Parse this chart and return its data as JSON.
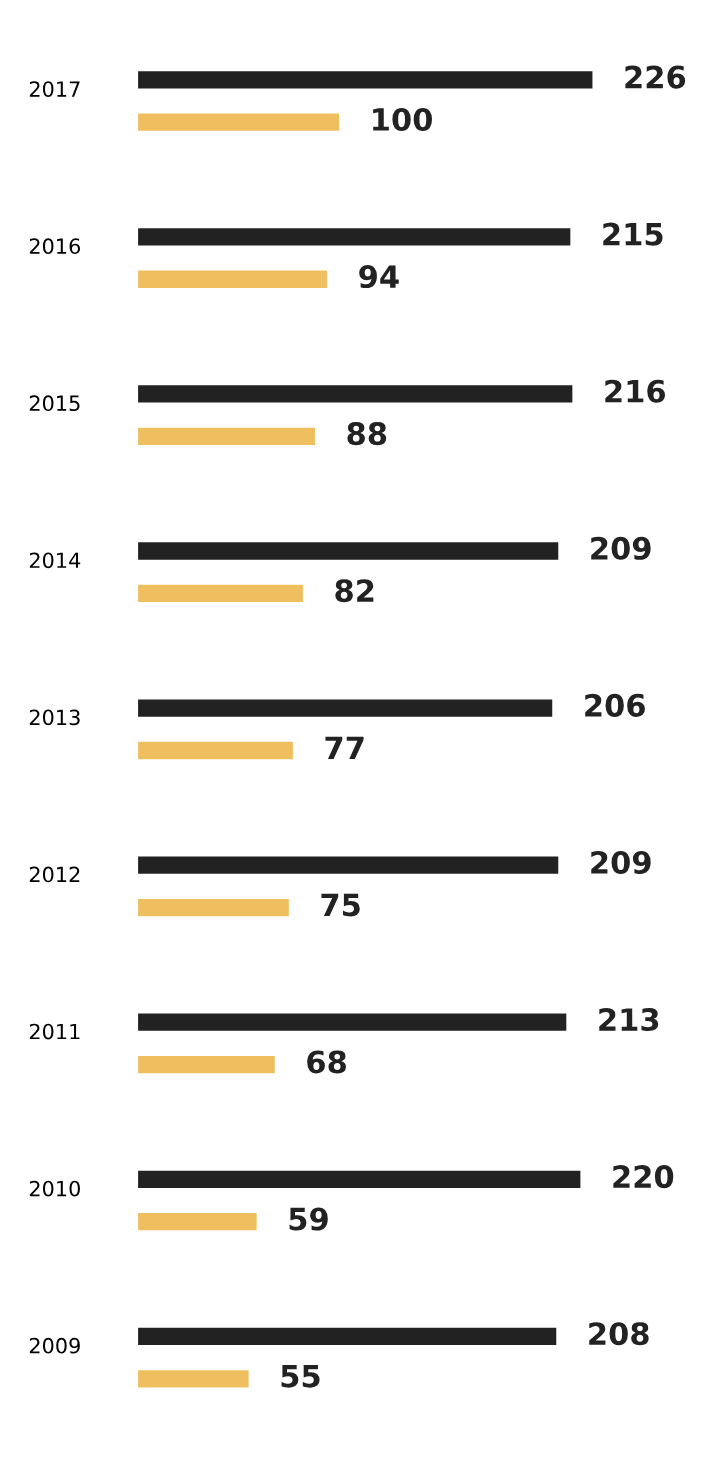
{
  "chart_data": {
    "type": "bar",
    "orientation": "horizontal",
    "categories": [
      "2017",
      "2016",
      "2015",
      "2014",
      "2013",
      "2012",
      "2011",
      "2010",
      "2009"
    ],
    "series": [
      {
        "color": "#222222",
        "values": [
          226,
          215,
          216,
          209,
          206,
          209,
          213,
          220,
          208
        ]
      },
      {
        "color": "#efbf5f",
        "values": [
          100,
          94,
          88,
          82,
          77,
          75,
          68,
          59,
          55
        ]
      }
    ],
    "data_labels": true,
    "tick_labels": "y",
    "grid": false
  }
}
